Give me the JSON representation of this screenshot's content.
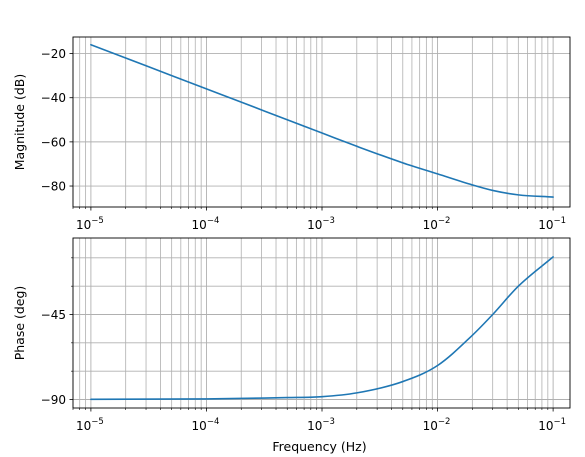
{
  "chart_data": [
    {
      "type": "line",
      "scale": {
        "x": "log",
        "y": "linear"
      },
      "xlim": [
        7e-06,
        0.14
      ],
      "ylim": [
        -89.5,
        -12.5
      ],
      "xlabel": "",
      "ylabel": "Magnitude (dB)",
      "grid": "major and minor on x, major on y",
      "xticks": [
        {
          "value": 1e-05,
          "label": "10",
          "exp": "−5"
        },
        {
          "value": 0.0001,
          "label": "10",
          "exp": "−4"
        },
        {
          "value": 0.001,
          "label": "10",
          "exp": "−3"
        },
        {
          "value": 0.01,
          "label": "10",
          "exp": "−2"
        },
        {
          "value": 0.1,
          "label": "10",
          "exp": "−1"
        }
      ],
      "yticks": [
        {
          "value": -20,
          "label": "−20"
        },
        {
          "value": -40,
          "label": "−40"
        },
        {
          "value": -60,
          "label": "−60"
        },
        {
          "value": -80,
          "label": "−80"
        }
      ],
      "series": [
        {
          "color": "#1f77b4",
          "x": [
            1e-05,
            2e-05,
            5e-05,
            0.0001,
            0.0002,
            0.0005,
            0.001,
            0.002,
            0.005,
            0.01,
            0.02,
            0.03,
            0.05,
            0.1
          ],
          "y": [
            -16,
            -22,
            -30,
            -36,
            -42,
            -50,
            -56,
            -62,
            -69.5,
            -74.5,
            -79.5,
            -82,
            -84,
            -85
          ]
        }
      ]
    },
    {
      "type": "line",
      "scale": {
        "x": "log",
        "y": "linear"
      },
      "xlim": [
        7e-06,
        0.14
      ],
      "ylim": [
        -94.5,
        -4.5
      ],
      "xlabel": "Frequency (Hz)",
      "ylabel": "Phase (deg)",
      "grid": "major and minor on x, major and minor on y",
      "xticks": [
        {
          "value": 1e-05,
          "label": "10",
          "exp": "−5"
        },
        {
          "value": 0.0001,
          "label": "10",
          "exp": "−4"
        },
        {
          "value": 0.001,
          "label": "10",
          "exp": "−3"
        },
        {
          "value": 0.01,
          "label": "10",
          "exp": "−2"
        },
        {
          "value": 0.1,
          "label": "10",
          "exp": "−1"
        }
      ],
      "yticks": [
        {
          "value": -45,
          "label": "−45"
        },
        {
          "value": -90,
          "label": "−90"
        }
      ],
      "yminor": [
        -75,
        -60,
        -30,
        -15
      ],
      "series": [
        {
          "color": "#1f77b4",
          "x": [
            1e-05,
            0.0001,
            0.0005,
            0.001,
            0.002,
            0.005,
            0.01,
            0.02,
            0.03,
            0.05,
            0.1
          ],
          "y": [
            -89.9,
            -89.7,
            -89,
            -88.5,
            -86.5,
            -80.5,
            -72,
            -56,
            -45,
            -30,
            -14.5
          ]
        }
      ]
    }
  ]
}
